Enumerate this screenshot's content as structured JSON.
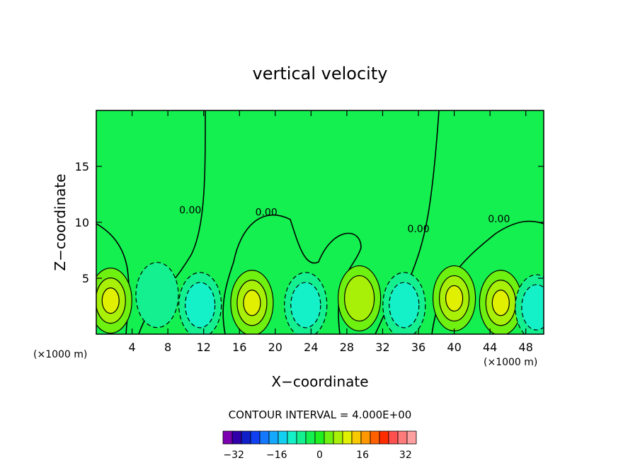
{
  "chart_data": {
    "type": "contour",
    "title": "vertical velocity",
    "xlabel": "X−coordinate",
    "ylabel": "Z−coordinate",
    "x_unit_left": "(×1000 m)",
    "x_unit_right": "(×1000 m)",
    "xlim": [
      0,
      50
    ],
    "ylim": [
      0,
      20
    ],
    "x_ticks": [
      4,
      8,
      12,
      16,
      20,
      24,
      28,
      32,
      36,
      40,
      44,
      48
    ],
    "y_ticks": [
      5,
      10,
      15
    ],
    "contour_interval_text": "CONTOUR INTERVAL = 4.000E+00",
    "contour_interval": 4.0,
    "zero_contour_label": "0.00",
    "zero_label_positions": [
      {
        "x": 10.5,
        "z": 10.8
      },
      {
        "x": 19.0,
        "z": 10.6
      },
      {
        "x": 36.0,
        "z": 9.1
      },
      {
        "x": 45.0,
        "z": 10.0
      }
    ],
    "colorbar": {
      "range": [
        -36,
        36
      ],
      "tick_values": [
        -32,
        -16,
        0,
        16,
        32
      ],
      "tick_labels": [
        "−32",
        "−16",
        "0",
        "16",
        "32"
      ],
      "colors": [
        "#7a00b0",
        "#3000a8",
        "#1020c8",
        "#1040f0",
        "#1478ff",
        "#14a8ff",
        "#14d0f0",
        "#14f0c8",
        "#14f090",
        "#14f050",
        "#20f020",
        "#6ef010",
        "#a8f008",
        "#e0f000",
        "#f8c800",
        "#ff9800",
        "#ff6000",
        "#ff2c00",
        "#ff5050",
        "#ff7a7a",
        "#ffa0a0"
      ]
    },
    "colors": {
      "background": "#14f050",
      "updraft_1": "#6ef010",
      "updraft_2": "#a8f008",
      "updraft_3": "#e0f000",
      "downdraft_1": "#14f090",
      "downdraft_2": "#14f0c8"
    },
    "cells": [
      {
        "x": 1.6,
        "z": 3.0,
        "sign": 1,
        "levels": 3
      },
      {
        "x": 6.8,
        "z": 3.5,
        "sign": -1,
        "levels": 1
      },
      {
        "x": 11.6,
        "z": 2.6,
        "sign": -1,
        "levels": 2
      },
      {
        "x": 17.4,
        "z": 2.8,
        "sign": 1,
        "levels": 3
      },
      {
        "x": 23.4,
        "z": 2.6,
        "sign": -1,
        "levels": 2
      },
      {
        "x": 29.4,
        "z": 3.2,
        "sign": 1,
        "levels": 2
      },
      {
        "x": 34.4,
        "z": 2.6,
        "sign": -1,
        "levels": 2
      },
      {
        "x": 40.0,
        "z": 3.2,
        "sign": 1,
        "levels": 3
      },
      {
        "x": 45.2,
        "z": 2.8,
        "sign": 1,
        "levels": 3
      },
      {
        "x": 49.2,
        "z": 2.4,
        "sign": -1,
        "levels": 2
      }
    ]
  }
}
